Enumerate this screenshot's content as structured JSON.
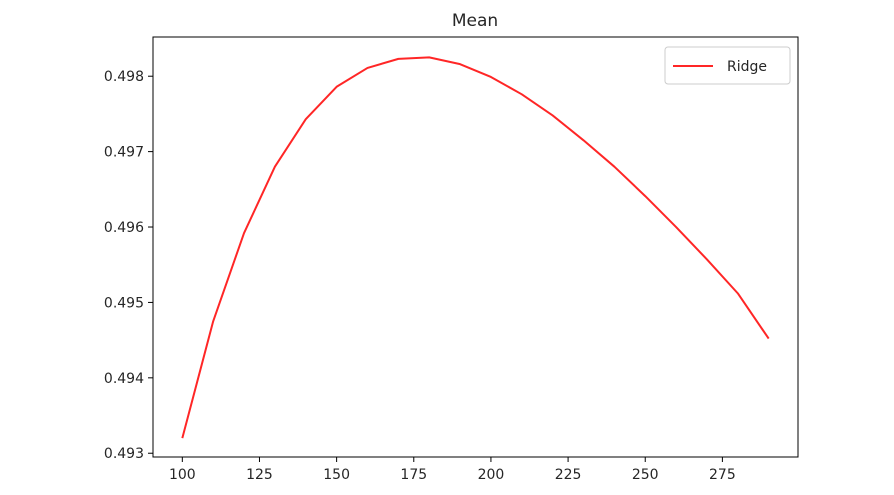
{
  "chart_data": {
    "type": "line",
    "title": "Mean",
    "xlabel": "",
    "ylabel": "",
    "xlim": [
      90.5,
      299.5
    ],
    "ylim": [
      0.49295,
      0.49852
    ],
    "xticks": [
      100,
      125,
      150,
      175,
      200,
      225,
      250,
      275
    ],
    "xtick_labels": [
      "100",
      "125",
      "150",
      "175",
      "200",
      "225",
      "250",
      "275"
    ],
    "yticks": [
      0.493,
      0.494,
      0.495,
      0.496,
      0.497,
      0.498
    ],
    "ytick_labels": [
      "0.493",
      "0.494",
      "0.495",
      "0.496",
      "0.497",
      "0.498"
    ],
    "grid": false,
    "legend_position": "top-right",
    "series": [
      {
        "name": "Ridge",
        "color": "#ff0000",
        "x": [
          100,
          110,
          120,
          130,
          140,
          150,
          160,
          170,
          180,
          190,
          200,
          210,
          220,
          230,
          240,
          250,
          260,
          270,
          280,
          290
        ],
        "y": [
          0.4932,
          0.49475,
          0.49592,
          0.4968,
          0.49743,
          0.49786,
          0.49811,
          0.49823,
          0.49825,
          0.49816,
          0.49799,
          0.49776,
          0.49748,
          0.49715,
          0.4968,
          0.49641,
          0.496,
          0.49557,
          0.49512,
          0.49452
        ]
      }
    ]
  }
}
